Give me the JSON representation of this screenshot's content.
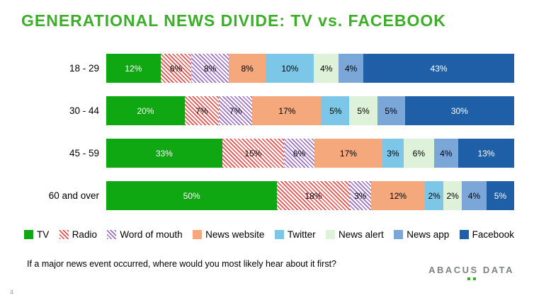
{
  "title": "GENERATIONAL NEWS DIVIDE: TV vs. FACEBOOK",
  "footnote": "If a major news event occurred, where would you most likely hear about it first?",
  "page_number": "4",
  "logo": {
    "text": "ABACUS DATA"
  },
  "chart_data": {
    "type": "bar",
    "stacked": true,
    "orientation": "horizontal",
    "title": "GENERATIONAL NEWS DIVIDE: TV vs. FACEBOOK",
    "value_suffix": "%",
    "xlim": [
      0,
      100
    ],
    "legend_position": "bottom",
    "categories": [
      "18 - 29",
      "30 - 44",
      "45 - 59",
      "60 and over"
    ],
    "series": [
      {
        "name": "TV",
        "color": "#0fa712",
        "pattern": "solid",
        "label_color": "#ffffff",
        "values": [
          12,
          20,
          33,
          50
        ]
      },
      {
        "name": "Radio",
        "color": "#e4504d",
        "pattern": "diagonal-hatch",
        "label_color": "#000000",
        "values": [
          6,
          7,
          15,
          18
        ]
      },
      {
        "name": "Word of mouth",
        "color": "#9b6fc2",
        "pattern": "diagonal-hatch",
        "label_color": "#000000",
        "values": [
          8,
          7,
          6,
          3
        ]
      },
      {
        "name": "News website",
        "color": "#f4a87c",
        "pattern": "solid",
        "label_color": "#000000",
        "values": [
          8,
          17,
          17,
          12
        ]
      },
      {
        "name": "Twitter",
        "color": "#7cc7e8",
        "pattern": "solid",
        "label_color": "#000000",
        "values": [
          10,
          5,
          3,
          2
        ]
      },
      {
        "name": "News alert",
        "color": "#ddf2d8",
        "pattern": "solid",
        "label_color": "#000000",
        "values": [
          4,
          5,
          6,
          2
        ]
      },
      {
        "name": "News app",
        "color": "#7aa7d8",
        "pattern": "solid",
        "label_color": "#000000",
        "values": [
          4,
          5,
          4,
          4
        ]
      },
      {
        "name": "Facebook",
        "color": "#1e5fa8",
        "pattern": "solid",
        "label_color": "#ffffff",
        "values": [
          43,
          30,
          13,
          5
        ]
      }
    ]
  }
}
